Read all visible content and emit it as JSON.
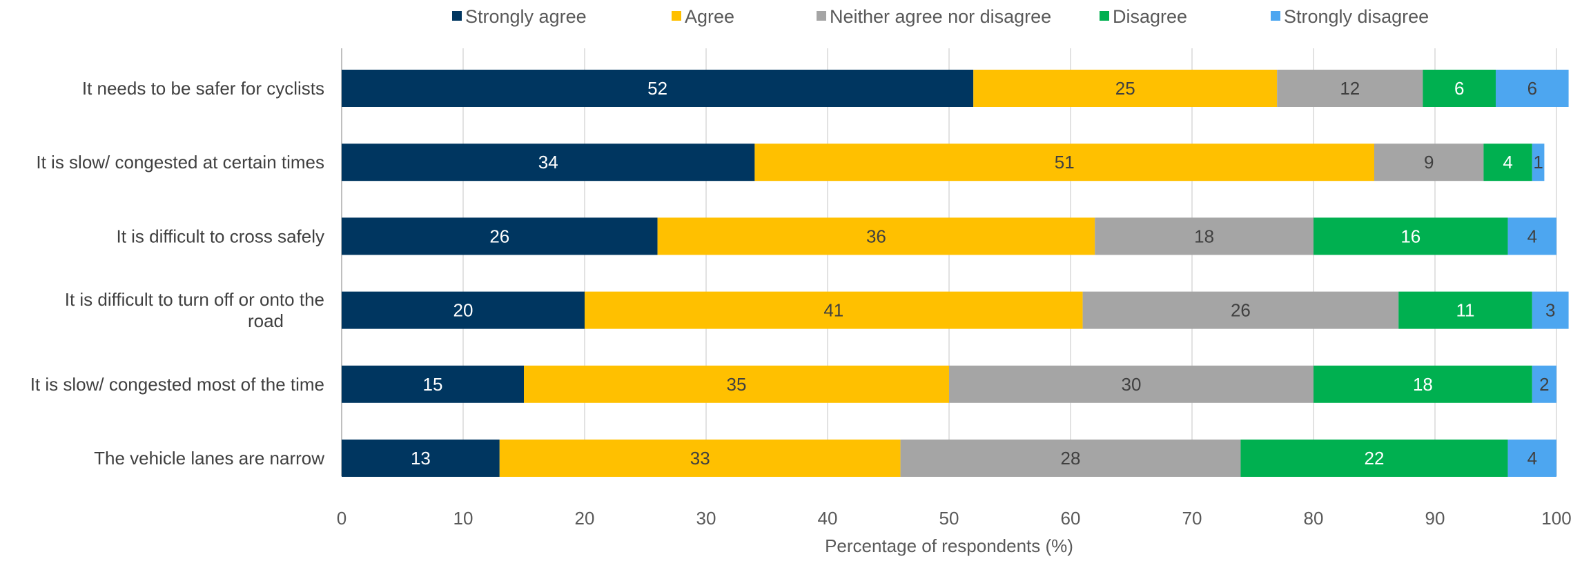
{
  "chart_data": {
    "type": "bar",
    "orientation": "horizontal",
    "stacked": true,
    "categories": [
      [
        "It needs to be safer for cyclists"
      ],
      [
        "It is slow/ congested at certain times"
      ],
      [
        "It is difficult to cross safely"
      ],
      [
        "It is difficult to turn off or onto the",
        "road"
      ],
      [
        "It is slow/ congested most of the time"
      ],
      [
        "The vehicle lanes are narrow"
      ]
    ],
    "series": [
      {
        "name": "Strongly agree",
        "color": "#003660",
        "label_color": "#ffffff",
        "values": [
          52,
          34,
          26,
          20,
          15,
          13
        ]
      },
      {
        "name": "Agree",
        "color": "#ffc000",
        "label_color": "#404040",
        "values": [
          25,
          51,
          36,
          41,
          35,
          33
        ]
      },
      {
        "name": "Neither agree nor disagree",
        "color": "#a5a5a5",
        "label_color": "#404040",
        "values": [
          12,
          9,
          18,
          26,
          30,
          28
        ]
      },
      {
        "name": "Disagree",
        "color": "#00b050",
        "label_color": "#ffffff",
        "values": [
          6,
          4,
          16,
          11,
          18,
          22
        ]
      },
      {
        "name": "Strongly disagree",
        "color": "#4da6f0",
        "label_color": "#404040",
        "values": [
          6,
          1,
          4,
          3,
          2,
          4
        ]
      }
    ],
    "xlabel": "Percentage of respondents (%)",
    "xlim": [
      0,
      100
    ],
    "xticks": [
      0,
      10,
      20,
      30,
      40,
      50,
      60,
      70,
      80,
      90,
      100
    ],
    "grid": "vertical",
    "legend_position": "top"
  }
}
